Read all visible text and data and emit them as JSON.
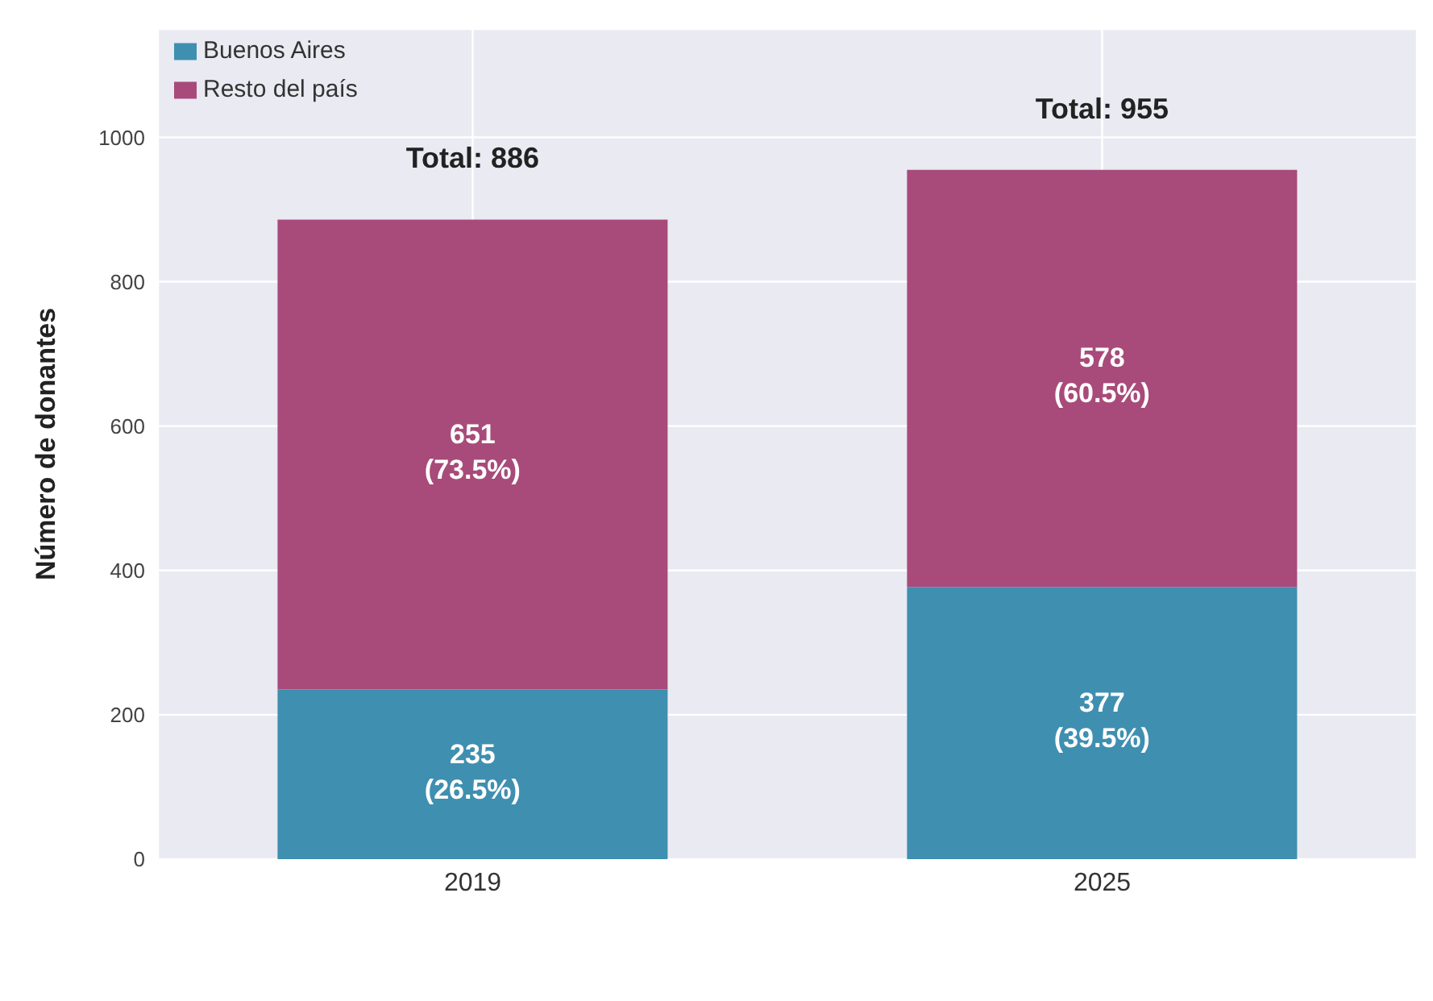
{
  "chart_data": {
    "type": "bar",
    "stacked": true,
    "ylabel": "Número de donantes",
    "categories": [
      "2019",
      "2025"
    ],
    "series": [
      {
        "name": "Buenos Aires",
        "color": "#3f8fb0",
        "values": [
          235,
          377
        ],
        "value_labels": [
          "235 (26.5%)",
          "377 (39.5%)"
        ]
      },
      {
        "name": "Resto del país",
        "color": "#a84b7a",
        "values": [
          651,
          578
        ],
        "value_labels": [
          "651 (73.5%)",
          "578 (60.5%)"
        ]
      }
    ],
    "totals": [
      "Total: 886",
      "Total: 955"
    ],
    "ylim": [
      0,
      1150
    ],
    "yticks": [
      0,
      200,
      400,
      600,
      800,
      1000
    ],
    "grid": true,
    "legend": "top left"
  }
}
